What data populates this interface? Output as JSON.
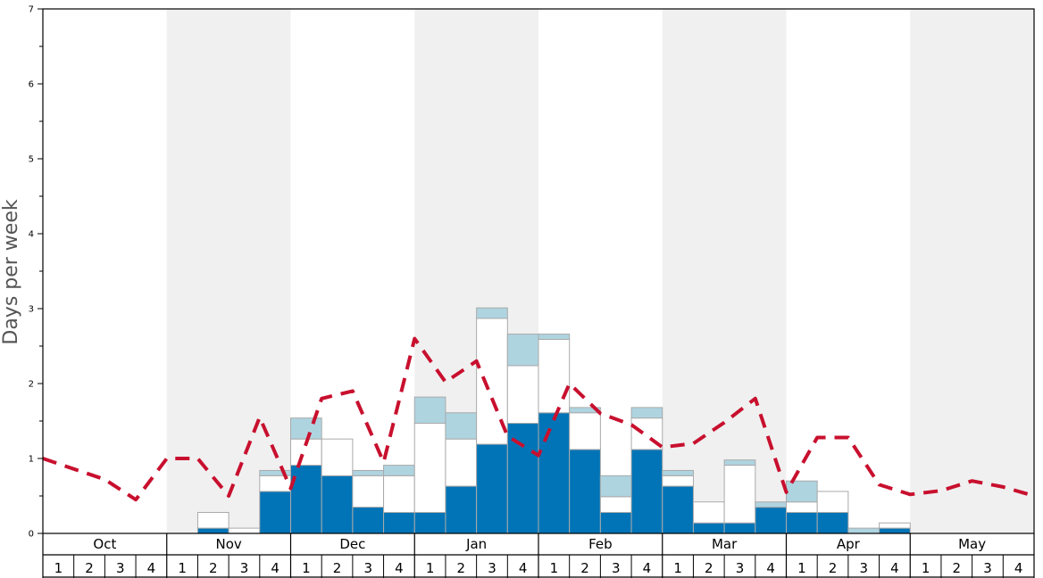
{
  "chart_data": {
    "type": "bar",
    "ylabel": "Days per week",
    "ylim": [
      0,
      7
    ],
    "y_ticks": [
      0,
      1,
      2,
      3,
      4,
      5,
      6,
      7
    ],
    "months": [
      "Oct",
      "Nov",
      "Dec",
      "Jan",
      "Feb",
      "Mar",
      "Apr",
      "May"
    ],
    "weeks": [
      "1",
      "2",
      "3",
      "4"
    ],
    "stacking": "stacked",
    "grid": false,
    "legend": "none",
    "colors": {
      "dark": "#0174b7",
      "white": "#ffffff",
      "light": "#aed4e0",
      "line": "#c8102e",
      "shade": "#f0f0f0",
      "bar_border": "#aaaaaa"
    },
    "series": [
      {
        "color": "dark",
        "values": [
          0,
          0,
          0,
          0,
          0,
          0.07,
          0,
          0.56,
          0.91,
          0.77,
          0.35,
          0.28,
          0.28,
          0.63,
          1.19,
          1.47,
          1.61,
          1.12,
          0.28,
          1.12,
          0.63,
          0.14,
          0.14,
          0.35,
          0.28,
          0.28,
          0,
          0.07,
          0,
          0,
          0,
          0
        ]
      },
      {
        "color": "white",
        "values": [
          0,
          0,
          0,
          0,
          0,
          0.21,
          0.07,
          0.21,
          0.35,
          0.49,
          0.42,
          0.49,
          1.19,
          0.63,
          1.68,
          0.77,
          0.98,
          0.49,
          0.21,
          0.42,
          0.14,
          0.28,
          0.77,
          0,
          0.14,
          0.28,
          0,
          0.07,
          0,
          0,
          0,
          0
        ]
      },
      {
        "color": "light",
        "values": [
          0,
          0,
          0,
          0,
          0,
          0,
          0,
          0.07,
          0.28,
          0,
          0.07,
          0.14,
          0.35,
          0.35,
          0.14,
          0.42,
          0.07,
          0.07,
          0.28,
          0.14,
          0.07,
          0,
          0.07,
          0.07,
          0.28,
          0,
          0.07,
          0,
          0,
          0,
          0,
          0
        ]
      }
    ],
    "line": {
      "style": "dashed",
      "values": [
        1.0,
        0.86,
        0.72,
        0.45,
        1.0,
        1.0,
        0.5,
        1.55,
        0.6,
        1.8,
        1.9,
        0.95,
        2.6,
        2.02,
        2.3,
        1.3,
        1.04,
        2.0,
        1.6,
        1.45,
        1.15,
        1.2,
        1.48,
        1.8,
        0.55,
        1.28,
        1.28,
        0.65,
        0.52,
        0.57,
        0.7,
        0.62,
        0.5
      ]
    }
  }
}
